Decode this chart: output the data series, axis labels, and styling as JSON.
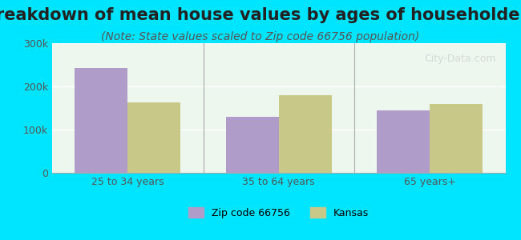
{
  "title": "Breakdown of mean house values by ages of householders",
  "subtitle": "(Note: State values scaled to Zip code 66756 population)",
  "categories": [
    "25 to 34 years",
    "35 to 64 years",
    "65 years+"
  ],
  "zip_values": [
    242000,
    130000,
    145000
  ],
  "state_values": [
    163000,
    180000,
    160000
  ],
  "ylim": [
    0,
    300000
  ],
  "yticks": [
    0,
    100000,
    200000,
    300000
  ],
  "ytick_labels": [
    "0",
    "100k",
    "200k",
    "300k"
  ],
  "zip_color": "#b09cc8",
  "state_color": "#c8c888",
  "background_color": "#00e5ff",
  "plot_bg_color": "#edf7ed",
  "legend_zip": "Zip code 66756",
  "legend_state": "Kansas",
  "watermark": "City-Data.com",
  "bar_width": 0.35,
  "title_fontsize": 15,
  "subtitle_fontsize": 10
}
